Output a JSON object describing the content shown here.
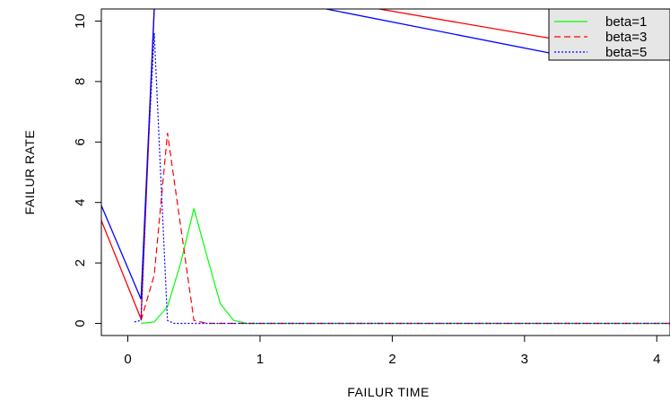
{
  "chart_data": {
    "type": "line",
    "title": "",
    "xlabel": "FAILUR TIME",
    "ylabel": "FAILUR RATE",
    "xlim": [
      -0.2,
      4.1
    ],
    "ylim": [
      -0.4,
      10.4
    ],
    "x_ticks": [
      0,
      1,
      2,
      3,
      4
    ],
    "y_ticks": [
      0,
      2,
      4,
      6,
      8,
      10
    ],
    "grid": false,
    "legend_position": "top-right",
    "series": [
      {
        "name": "beta=1",
        "color": "#00ff00",
        "dash": "solid",
        "points": [
          [
            0.1,
            0.0
          ],
          [
            0.2,
            0.05
          ],
          [
            0.3,
            0.55
          ],
          [
            0.4,
            2.0
          ],
          [
            0.5,
            3.8
          ],
          [
            0.6,
            2.2
          ],
          [
            0.7,
            0.65
          ],
          [
            0.8,
            0.1
          ],
          [
            0.9,
            0.0
          ],
          [
            1.0,
            0.0
          ],
          [
            1.5,
            0.0
          ],
          [
            2.0,
            0.0
          ],
          [
            2.5,
            0.0
          ],
          [
            3.0,
            0.0
          ],
          [
            3.5,
            0.0
          ],
          [
            4.1,
            0.0
          ]
        ]
      },
      {
        "name": "beta=3",
        "color": "#ff0000",
        "dash": "dashed",
        "points": [
          [
            0.1,
            0.1
          ],
          [
            0.2,
            1.6
          ],
          [
            0.3,
            6.3
          ],
          [
            0.4,
            3.2
          ],
          [
            0.5,
            0.1
          ],
          [
            0.6,
            0.0
          ],
          [
            0.7,
            0.0
          ],
          [
            1.0,
            0.0
          ],
          [
            1.5,
            0.0
          ],
          [
            2.0,
            0.0
          ],
          [
            2.5,
            0.0
          ],
          [
            3.0,
            0.0
          ],
          [
            3.5,
            0.0
          ],
          [
            4.1,
            0.0
          ]
        ]
      },
      {
        "name": "beta=5",
        "color": "#0000ff",
        "dash": "dotted",
        "points": [
          [
            0.05,
            0.05
          ],
          [
            0.1,
            0.1
          ],
          [
            0.15,
            5.5
          ],
          [
            0.2,
            9.6
          ],
          [
            0.25,
            4.8
          ],
          [
            0.3,
            0.1
          ],
          [
            0.35,
            0.0
          ],
          [
            0.5,
            0.0
          ],
          [
            1.0,
            0.0
          ],
          [
            1.5,
            0.0
          ],
          [
            2.0,
            0.0
          ],
          [
            2.5,
            0.0
          ],
          [
            3.0,
            0.0
          ],
          [
            3.5,
            0.0
          ],
          [
            4.1,
            0.0
          ]
        ]
      }
    ],
    "extra_lines": [
      {
        "color": "#ff0000",
        "points": [
          [
            -0.2,
            3.4
          ],
          [
            0.1,
            0.15
          ],
          [
            0.2,
            10.4
          ]
        ]
      },
      {
        "color": "#ff0000",
        "points": [
          [
            1.9,
            10.4
          ],
          [
            3.3,
            9.35
          ]
        ]
      },
      {
        "color": "#0000ff",
        "points": [
          [
            -0.2,
            3.9
          ],
          [
            0.1,
            0.8
          ],
          [
            0.2,
            10.4
          ]
        ]
      },
      {
        "color": "#0000ff",
        "points": [
          [
            1.5,
            10.4
          ],
          [
            3.3,
            8.85
          ]
        ]
      }
    ]
  }
}
